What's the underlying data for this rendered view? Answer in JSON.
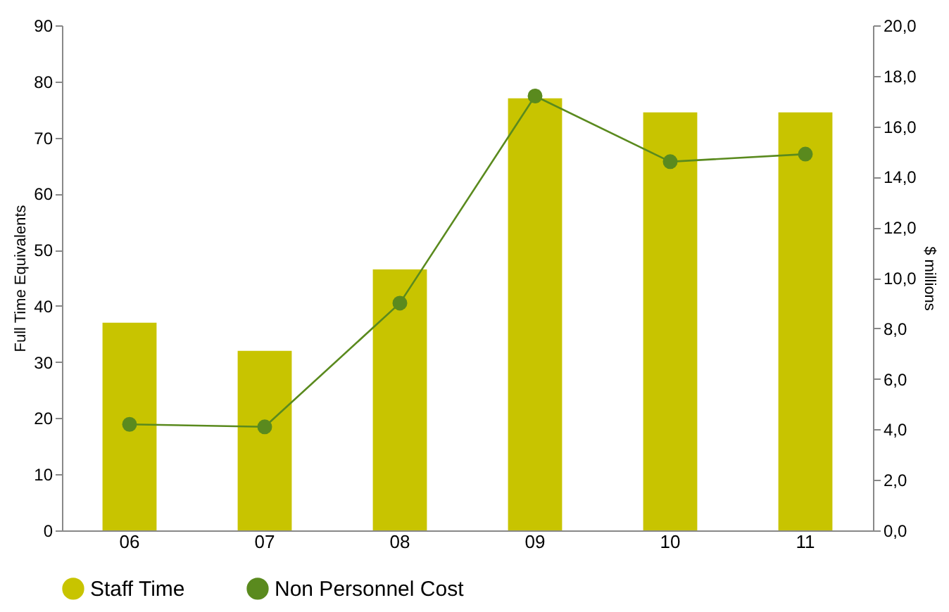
{
  "chart_data": {
    "type": "bar",
    "xlabel": null,
    "ylabel": "Full Time Equivalents",
    "y2label": "$ millions",
    "categories": [
      "06",
      "07",
      "08",
      "09",
      "10",
      "11"
    ],
    "series": [
      {
        "name": "Staff Time",
        "color": "#c8c400",
        "values": [
          37,
          32,
          46.5,
          77,
          74.5,
          74.5
        ]
      },
      {
        "name": "Non Personnel Cost",
        "type": "line",
        "axis": "y2",
        "color": "#5a8a1e",
        "values": [
          4.2,
          4.1,
          9.0,
          17.2,
          14.6,
          14.9
        ]
      }
    ],
    "ylim": [
      0,
      90
    ],
    "yticks": [
      0,
      10,
      20,
      30,
      40,
      50,
      60,
      70,
      80,
      90
    ],
    "y2lim": [
      0,
      20
    ],
    "y2ticks": [
      {
        "value": 0,
        "label": "0,0"
      },
      {
        "value": 2,
        "label": "2,0"
      },
      {
        "value": 4,
        "label": "4,0"
      },
      {
        "value": 6,
        "label": "6,0"
      },
      {
        "value": 8,
        "label": "8,0"
      },
      {
        "value": 10,
        "label": "10,0"
      },
      {
        "value": 12,
        "label": "12,0"
      },
      {
        "value": 14,
        "label": "14,0"
      },
      {
        "value": 16,
        "label": "16,0"
      },
      {
        "value": 18,
        "label": "18,0"
      },
      {
        "value": 20,
        "label": "20,0"
      }
    ],
    "grid": false,
    "legend": "bottom",
    "marker": "circle",
    "line_style": "solid"
  }
}
